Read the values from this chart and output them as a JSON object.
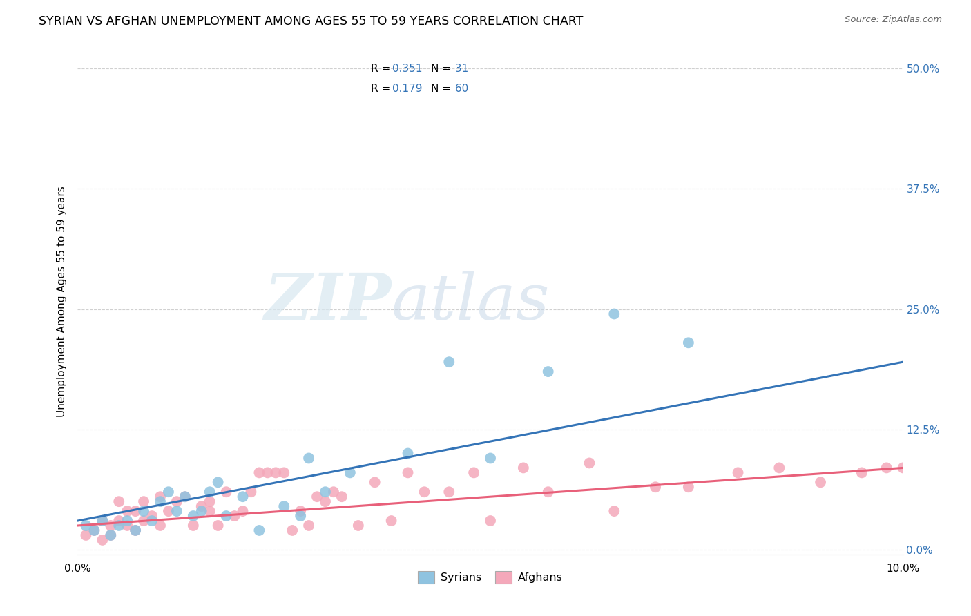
{
  "title": "SYRIAN VS AFGHAN UNEMPLOYMENT AMONG AGES 55 TO 59 YEARS CORRELATION CHART",
  "source": "Source: ZipAtlas.com",
  "ylabel": "Unemployment Among Ages 55 to 59 years",
  "ytick_values": [
    0.0,
    0.125,
    0.25,
    0.375,
    0.5
  ],
  "ytick_labels_right": [
    "0.0%",
    "12.5%",
    "25.0%",
    "37.5%",
    "50.0%"
  ],
  "xlim": [
    0,
    0.1
  ],
  "ylim": [
    -0.005,
    0.52
  ],
  "syrian_color": "#8fc3e0",
  "afghan_color": "#f4a8ba",
  "syrian_line_color": "#3474b7",
  "afghan_line_color": "#e8607a",
  "watermark_zip": "ZIP",
  "watermark_atlas": "atlas",
  "syrians_label": "Syrians",
  "afghans_label": "Afghans",
  "r_syrian": "0.351",
  "n_syrian": "31",
  "r_afghan": "0.179",
  "n_afghan": "60",
  "syrian_points_x": [
    0.001,
    0.002,
    0.003,
    0.004,
    0.005,
    0.006,
    0.007,
    0.008,
    0.009,
    0.01,
    0.011,
    0.012,
    0.013,
    0.014,
    0.015,
    0.016,
    0.017,
    0.018,
    0.02,
    0.022,
    0.025,
    0.027,
    0.028,
    0.03,
    0.033,
    0.04,
    0.045,
    0.05,
    0.057,
    0.065,
    0.074
  ],
  "syrian_points_y": [
    0.025,
    0.02,
    0.03,
    0.015,
    0.025,
    0.03,
    0.02,
    0.04,
    0.03,
    0.05,
    0.06,
    0.04,
    0.055,
    0.035,
    0.04,
    0.06,
    0.07,
    0.035,
    0.055,
    0.02,
    0.045,
    0.035,
    0.095,
    0.06,
    0.08,
    0.1,
    0.195,
    0.095,
    0.185,
    0.245,
    0.215
  ],
  "afghan_points_x": [
    0.001,
    0.002,
    0.003,
    0.003,
    0.004,
    0.004,
    0.005,
    0.005,
    0.006,
    0.006,
    0.007,
    0.007,
    0.008,
    0.008,
    0.009,
    0.01,
    0.01,
    0.011,
    0.012,
    0.013,
    0.014,
    0.015,
    0.016,
    0.016,
    0.017,
    0.018,
    0.019,
    0.02,
    0.021,
    0.022,
    0.023,
    0.024,
    0.025,
    0.026,
    0.027,
    0.028,
    0.029,
    0.03,
    0.031,
    0.032,
    0.034,
    0.036,
    0.038,
    0.04,
    0.042,
    0.045,
    0.048,
    0.05,
    0.054,
    0.057,
    0.062,
    0.065,
    0.07,
    0.074,
    0.08,
    0.085,
    0.09,
    0.095,
    0.098,
    0.1
  ],
  "afghan_points_y": [
    0.015,
    0.02,
    0.03,
    0.01,
    0.025,
    0.015,
    0.03,
    0.05,
    0.025,
    0.04,
    0.02,
    0.04,
    0.03,
    0.05,
    0.035,
    0.055,
    0.025,
    0.04,
    0.05,
    0.055,
    0.025,
    0.045,
    0.04,
    0.05,
    0.025,
    0.06,
    0.035,
    0.04,
    0.06,
    0.08,
    0.08,
    0.08,
    0.08,
    0.02,
    0.04,
    0.025,
    0.055,
    0.05,
    0.06,
    0.055,
    0.025,
    0.07,
    0.03,
    0.08,
    0.06,
    0.06,
    0.08,
    0.03,
    0.085,
    0.06,
    0.09,
    0.04,
    0.065,
    0.065,
    0.08,
    0.085,
    0.07,
    0.08,
    0.085,
    0.085
  ],
  "line_syrian_x0": 0.0,
  "line_syrian_y0": 0.03,
  "line_syrian_x1": 0.1,
  "line_syrian_y1": 0.195,
  "line_afghan_x0": 0.0,
  "line_afghan_y0": 0.025,
  "line_afghan_x1": 0.1,
  "line_afghan_y1": 0.085,
  "background_color": "#ffffff",
  "grid_color": "#d0d0d0"
}
